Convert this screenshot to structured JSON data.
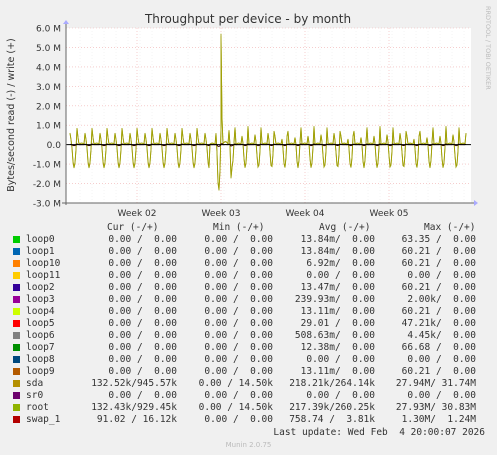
{
  "chart_data": {
    "type": "line",
    "title": "Throughput per device - by month",
    "ylabel": "Bytes/second read (-) / write (+)",
    "watermark": "RRDTOOL / TOBI OETIKER",
    "ylim": [
      -3000000,
      6000000
    ],
    "yticks": [
      6000000,
      5000000,
      4000000,
      3000000,
      2000000,
      1000000,
      0,
      -1000000,
      -2000000,
      -3000000
    ],
    "ytick_labels": [
      "6.0 M",
      "5.0 M",
      "4.0 M",
      "3.0 M",
      "2.0 M",
      "1.0 M",
      "0.0",
      "-1.0 M",
      "-2.0 M",
      "-3.0 M"
    ],
    "xticks": [
      "Week 02",
      "Week 03",
      "Week 04",
      "Week 05"
    ],
    "grid": true,
    "background": "#ffffff",
    "series": [
      {
        "name": "sda",
        "color": "#9fa216"
      },
      {
        "name": "root",
        "color": "#a0a005"
      },
      {
        "name": "swap_1",
        "color": "#330000"
      }
    ]
  },
  "legend": {
    "headers": {
      "cur": "Cur (-/+)",
      "min": "Min (-/+)",
      "avg": "Avg (-/+)",
      "max": "Max (-/+)"
    },
    "rows": [
      {
        "name": "loop0",
        "color": "#00cc00",
        "cur": "0.00 /  0.00",
        "min": "0.00 /  0.00",
        "avg": "13.84m/  0.00",
        "max": "63.35 /  0.00"
      },
      {
        "name": "loop1",
        "color": "#0066b3",
        "cur": "0.00 /  0.00",
        "min": "0.00 /  0.00",
        "avg": "13.84m/  0.00",
        "max": "60.21 /  0.00"
      },
      {
        "name": "loop10",
        "color": "#ff8000",
        "cur": "0.00 /  0.00",
        "min": "0.00 /  0.00",
        "avg": "6.92m/  0.00",
        "max": "60.21 /  0.00"
      },
      {
        "name": "loop11",
        "color": "#ffcc00",
        "cur": "0.00 /  0.00",
        "min": "0.00 /  0.00",
        "avg": "0.00 /  0.00",
        "max": "0.00 /  0.00"
      },
      {
        "name": "loop2",
        "color": "#330099",
        "cur": "0.00 /  0.00",
        "min": "0.00 /  0.00",
        "avg": "13.47m/  0.00",
        "max": "60.21 /  0.00"
      },
      {
        "name": "loop3",
        "color": "#990099",
        "cur": "0.00 /  0.00",
        "min": "0.00 /  0.00",
        "avg": "239.93m/  0.00",
        "max": "2.00k/  0.00"
      },
      {
        "name": "loop4",
        "color": "#ccff00",
        "cur": "0.00 /  0.00",
        "min": "0.00 /  0.00",
        "avg": "13.11m/  0.00",
        "max": "60.21 /  0.00"
      },
      {
        "name": "loop5",
        "color": "#ff0000",
        "cur": "0.00 /  0.00",
        "min": "0.00 /  0.00",
        "avg": "29.01 /  0.00",
        "max": "47.21k/  0.00"
      },
      {
        "name": "loop6",
        "color": "#808080",
        "cur": "0.00 /  0.00",
        "min": "0.00 /  0.00",
        "avg": "508.63m/  0.00",
        "max": "4.45k/  0.00"
      },
      {
        "name": "loop7",
        "color": "#008f00",
        "cur": "0.00 /  0.00",
        "min": "0.00 /  0.00",
        "avg": "12.38m/  0.00",
        "max": "66.68 /  0.00"
      },
      {
        "name": "loop8",
        "color": "#00487d",
        "cur": "0.00 /  0.00",
        "min": "0.00 /  0.00",
        "avg": "0.00 /  0.00",
        "max": "0.00 /  0.00"
      },
      {
        "name": "loop9",
        "color": "#b35a00",
        "cur": "0.00 /  0.00",
        "min": "0.00 /  0.00",
        "avg": "13.11m/  0.00",
        "max": "60.21 /  0.00"
      },
      {
        "name": "sda",
        "color": "#b38f00",
        "cur": "132.52k/945.57k",
        "min": "0.00 / 14.50k",
        "avg": "218.21k/264.14k",
        "max": "27.94M/ 31.74M"
      },
      {
        "name": "sr0",
        "color": "#6b006b",
        "cur": "0.00 /  0.00",
        "min": "0.00 /  0.00",
        "avg": "0.00 /  0.00",
        "max": "0.00 /  0.00"
      },
      {
        "name": "root",
        "color": "#8fb300",
        "cur": "132.43k/929.45k",
        "min": "0.00 / 14.50k",
        "avg": "217.39k/260.25k",
        "max": "27.93M/ 30.83M"
      },
      {
        "name": "swap_1",
        "color": "#b30000",
        "cur": "91.02 / 16.12k",
        "min": "0.00 /  0.00",
        "avg": "758.74 /  3.81k",
        "max": "1.30M/  1.24M"
      }
    ]
  },
  "footer": {
    "last_update": "Last update: Wed Feb  4 20:00:07 2026",
    "munin": "Munin 2.0.75"
  }
}
